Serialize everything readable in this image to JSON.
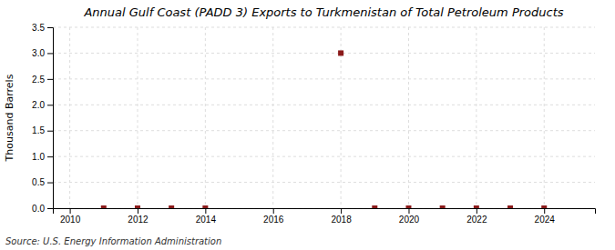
{
  "chart_data": {
    "type": "scatter",
    "title": "Annual Gulf Coast (PADD 3) Exports to Turkmenistan of Total Petroleum Products",
    "y_label": "Thousand Barrels",
    "annotations": [
      "Source: U.S. Energy Information Administration"
    ],
    "x": [
      2011,
      2012,
      2013,
      2014,
      2018,
      2019,
      2020,
      2021,
      2022,
      2023,
      2024
    ],
    "values": [
      0,
      0,
      0,
      0,
      3.0,
      0,
      0,
      0,
      0,
      0,
      0
    ],
    "color": "#8b1a1a",
    "marker": "square",
    "xlim": [
      2009.5,
      2025.5
    ],
    "ylim": [
      0,
      3.5
    ],
    "xticks": [
      2010,
      2012,
      2014,
      2016,
      2018,
      2020,
      2022,
      2024
    ],
    "yticks": [
      {
        "value": 0.0,
        "label": "0.0"
      },
      0.5,
      {
        "value": 1.0,
        "label": "1.0"
      },
      1.5,
      {
        "value": 2.0,
        "label": "2.0"
      },
      2.5,
      {
        "value": 3.0,
        "label": "3.0"
      },
      3.5
    ],
    "grid": true
  }
}
